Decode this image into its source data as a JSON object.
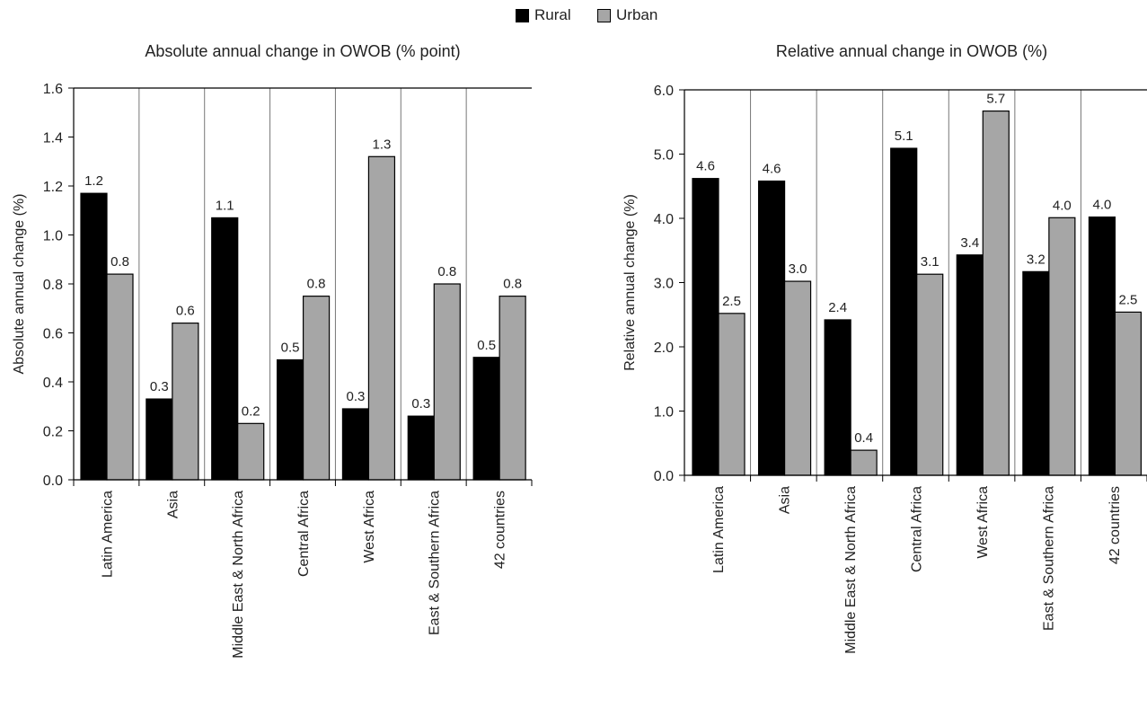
{
  "legend": [
    {
      "label": "Rural",
      "color": "#000000"
    },
    {
      "label": "Urban",
      "color": "#a6a6a6"
    }
  ],
  "chart_data": [
    {
      "type": "bar",
      "title": "Absolute annual change in OWOB (% point)",
      "xlabel": "",
      "ylabel": "Absolute annual change (%)",
      "ylim": [
        0,
        1.6
      ],
      "yticks": [
        "0.0",
        "0.2",
        "0.4",
        "0.6",
        "0.8",
        "1.0",
        "1.2",
        "1.4",
        "1.6"
      ],
      "categories": [
        "Latin America",
        "Asia",
        "Middle East & North Africa",
        "Central Africa",
        "West Africa",
        "East & Southern Africa",
        "42 countries"
      ],
      "series": [
        {
          "name": "Rural",
          "color": "#000000",
          "values": [
            1.17,
            0.33,
            1.07,
            0.49,
            0.29,
            0.26,
            0.5
          ],
          "labels": [
            "1.2",
            "0.3",
            "1.1",
            "0.5",
            "0.3",
            "0.3",
            "0.5"
          ]
        },
        {
          "name": "Urban",
          "color": "#a6a6a6",
          "values": [
            0.84,
            0.64,
            0.23,
            0.75,
            1.32,
            0.8,
            0.75
          ],
          "labels": [
            "0.8",
            "0.6",
            "0.2",
            "0.8",
            "1.3",
            "0.8",
            "0.8"
          ]
        }
      ],
      "grid": false,
      "legend_position": "top-center"
    },
    {
      "type": "bar",
      "title": "Relative annual change in OWOB (%)",
      "xlabel": "",
      "ylabel": "Relative annual change (%)",
      "ylim": [
        0,
        6.0
      ],
      "yticks": [
        "0.0",
        "1.0",
        "2.0",
        "3.0",
        "4.0",
        "5.0",
        "6.0"
      ],
      "categories": [
        "Latin America",
        "Asia",
        "Middle East & North Africa",
        "Central Africa",
        "West Africa",
        "East & Southern Africa",
        "42 countries"
      ],
      "series": [
        {
          "name": "Rural",
          "color": "#000000",
          "values": [
            4.62,
            4.58,
            2.42,
            5.09,
            3.43,
            3.17,
            4.02
          ],
          "labels": [
            "4.6",
            "4.6",
            "2.4",
            "5.1",
            "3.4",
            "3.2",
            "4.0"
          ]
        },
        {
          "name": "Urban",
          "color": "#a6a6a6",
          "values": [
            2.52,
            3.02,
            0.39,
            3.13,
            5.67,
            4.01,
            2.54
          ],
          "labels": [
            "2.5",
            "3.0",
            "0.4",
            "3.1",
            "5.7",
            "4.0",
            "2.5"
          ]
        }
      ],
      "grid": false,
      "legend_position": "top-center"
    }
  ]
}
